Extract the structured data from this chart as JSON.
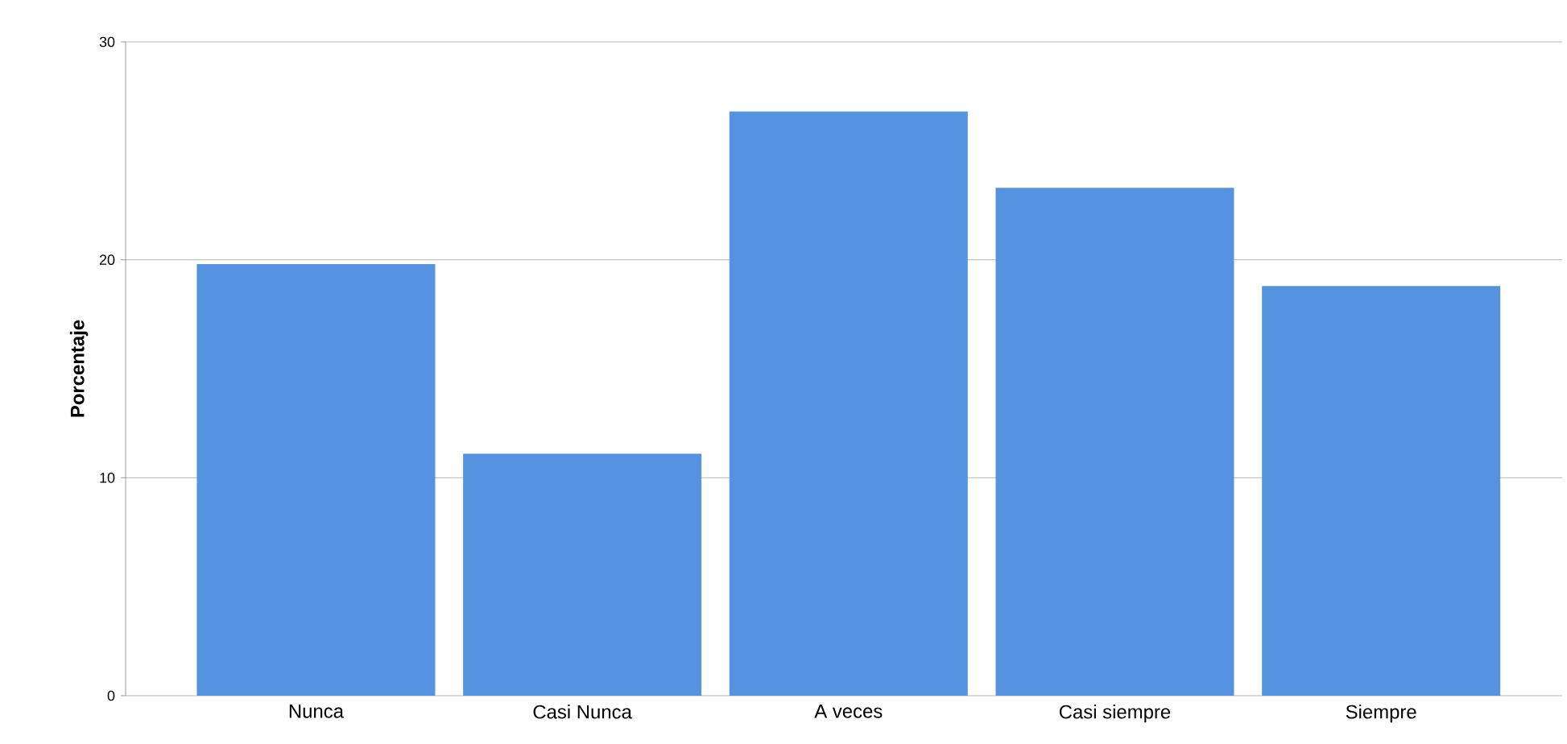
{
  "chart_data": {
    "type": "bar",
    "ylabel": "Porcentaje",
    "categories": [
      "Nunca",
      "Casi Nunca",
      "A veces",
      "Casi siempre",
      "Siempre"
    ],
    "values": [
      19.8,
      11.1,
      26.8,
      23.3,
      18.8
    ],
    "color": "#5592e0",
    "ylim": [
      0,
      30
    ],
    "yticks": [
      0,
      10,
      20,
      30
    ],
    "grid": "y"
  }
}
